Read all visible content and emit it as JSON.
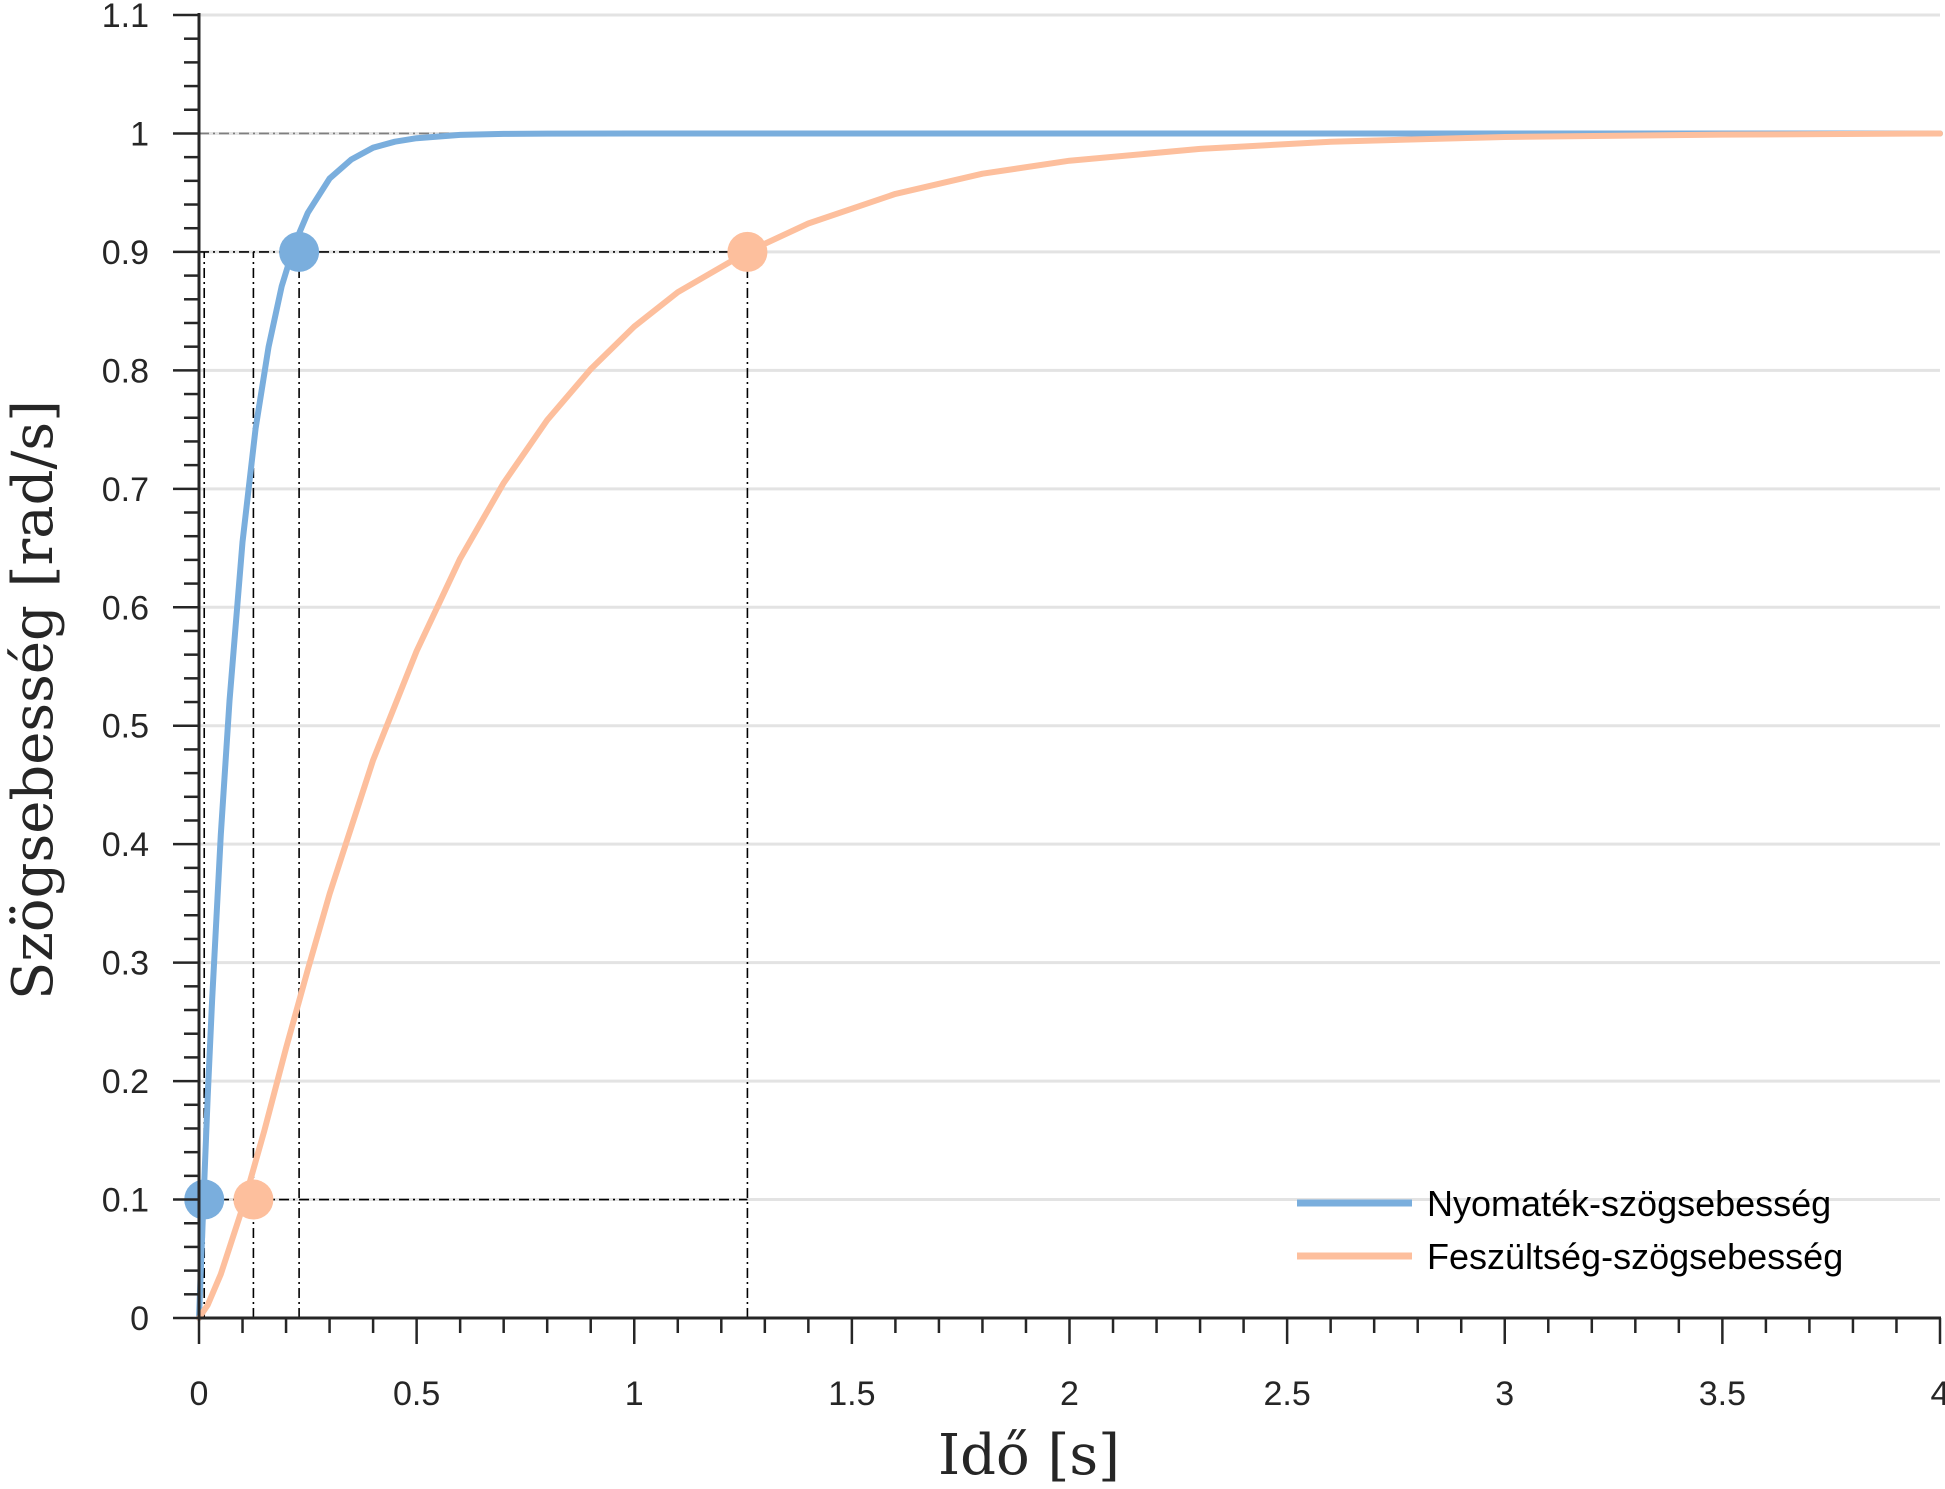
{
  "chart_data": {
    "type": "line",
    "xlabel": "Idő [s]",
    "ylabel": "Szögsebesség [rad/s]",
    "xlim": [
      0,
      4
    ],
    "ylim": [
      0,
      1.1
    ],
    "x_ticks": [
      0,
      0.5,
      1,
      1.5,
      2,
      2.5,
      3,
      3.5,
      4
    ],
    "x_tick_labels": [
      "0",
      "0.5",
      "1",
      "1.5",
      "2",
      "2.5",
      "3",
      "3.5",
      "4"
    ],
    "y_ticks": [
      0,
      0.1,
      0.2,
      0.3,
      0.4,
      0.5,
      0.6,
      0.7,
      0.8,
      0.9,
      1,
      1.1
    ],
    "y_tick_labels": [
      "0",
      "0.1",
      "0.2",
      "0.3",
      "0.4",
      "0.5",
      "0.6",
      "0.7",
      "0.8",
      "0.9",
      "1",
      "1.1"
    ],
    "grid": "horizontal",
    "legend_position": "bottom-right",
    "series": [
      {
        "name": "Nyomaték-szögsebesség",
        "color": "#7aaedd",
        "x": [
          0,
          0.01,
          0.02,
          0.03,
          0.05,
          0.07,
          0.1,
          0.13,
          0.16,
          0.19,
          0.22,
          0.25,
          0.3,
          0.35,
          0.4,
          0.45,
          0.5,
          0.6,
          0.7,
          0.8,
          1.0,
          1.5,
          2.0,
          3.0,
          4.0
        ],
        "y": [
          0,
          0.097,
          0.187,
          0.268,
          0.408,
          0.521,
          0.655,
          0.751,
          0.82,
          0.871,
          0.907,
          0.933,
          0.962,
          0.978,
          0.988,
          0.993,
          0.996,
          0.9988,
          0.9996,
          0.9999,
          1.0,
          1.0,
          1.0,
          1.0,
          1.0
        ]
      },
      {
        "name": "Feszültség-szögsebesség",
        "color": "#fdbf9d",
        "x": [
          0,
          0.02,
          0.05,
          0.1,
          0.15,
          0.2,
          0.25,
          0.3,
          0.4,
          0.5,
          0.6,
          0.7,
          0.8,
          0.9,
          1.0,
          1.1,
          1.26,
          1.4,
          1.6,
          1.8,
          2.0,
          2.3,
          2.6,
          3.0,
          3.5,
          4.0
        ],
        "y": [
          0,
          0.011,
          0.037,
          0.093,
          0.158,
          0.228,
          0.294,
          0.358,
          0.471,
          0.563,
          0.641,
          0.705,
          0.758,
          0.801,
          0.837,
          0.866,
          0.9,
          0.924,
          0.949,
          0.966,
          0.977,
          0.987,
          0.993,
          0.997,
          0.999,
          1.0
        ]
      }
    ],
    "markers": [
      {
        "series": 0,
        "x": 0.012,
        "y": 0.1
      },
      {
        "series": 0,
        "x": 0.23,
        "y": 0.9
      },
      {
        "series": 1,
        "x": 0.125,
        "y": 0.1
      },
      {
        "series": 1,
        "x": 1.26,
        "y": 0.9
      }
    ],
    "reference_lines": [
      {
        "orientation": "horizontal",
        "y": 1,
        "x_from": 0,
        "x_to": 4,
        "color": "#7f7f7f"
      },
      {
        "orientation": "horizontal",
        "y": 0.9,
        "x_from": 0,
        "x_to": 1.26,
        "color": "#000000"
      },
      {
        "orientation": "horizontal",
        "y": 0.1,
        "x_from": 0,
        "x_to": 1.26,
        "color": "#000000"
      },
      {
        "orientation": "vertical",
        "x": 0.012,
        "y_from": 0,
        "y_to": 0.9,
        "color": "#000000"
      },
      {
        "orientation": "vertical",
        "x": 0.125,
        "y_from": 0,
        "y_to": 0.9,
        "color": "#000000"
      },
      {
        "orientation": "vertical",
        "x": 0.23,
        "y_from": 0,
        "y_to": 0.9,
        "color": "#000000"
      },
      {
        "orientation": "vertical",
        "x": 1.26,
        "y_from": 0,
        "y_to": 0.9,
        "color": "#000000"
      }
    ]
  }
}
